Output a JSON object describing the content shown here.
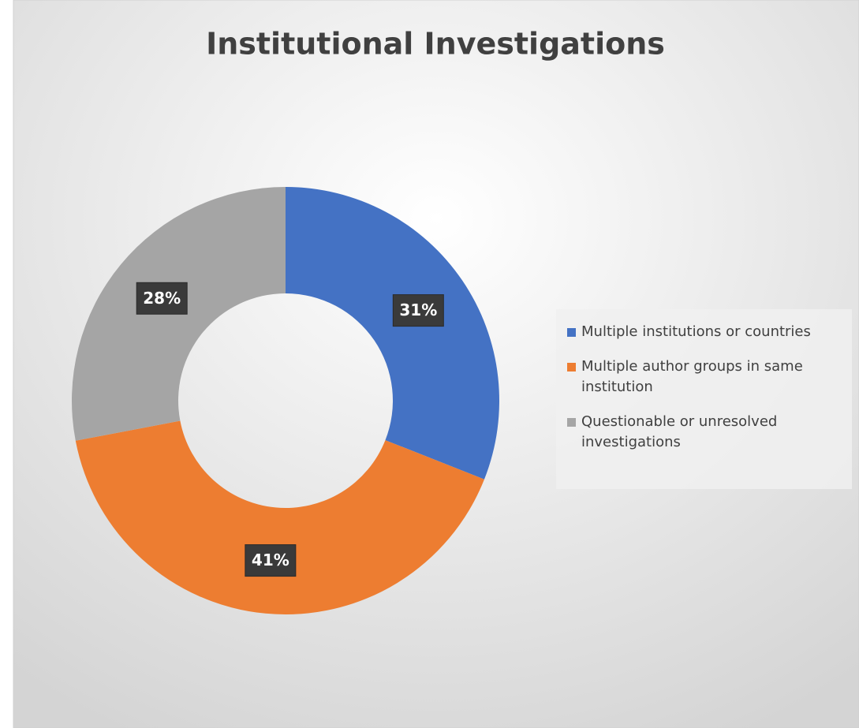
{
  "chart_data": {
    "type": "donut",
    "title": "Institutional Investigations",
    "categories": [
      "Multiple institutions or countries",
      "Multiple author groups in same institution",
      "Questionable or unresolved investigations"
    ],
    "values": [
      31,
      41,
      28
    ],
    "value_labels": [
      "31%",
      "41%",
      "28%"
    ],
    "colors": [
      "#4472c4",
      "#ed7d31",
      "#a5a5a5"
    ],
    "legend": "right"
  }
}
